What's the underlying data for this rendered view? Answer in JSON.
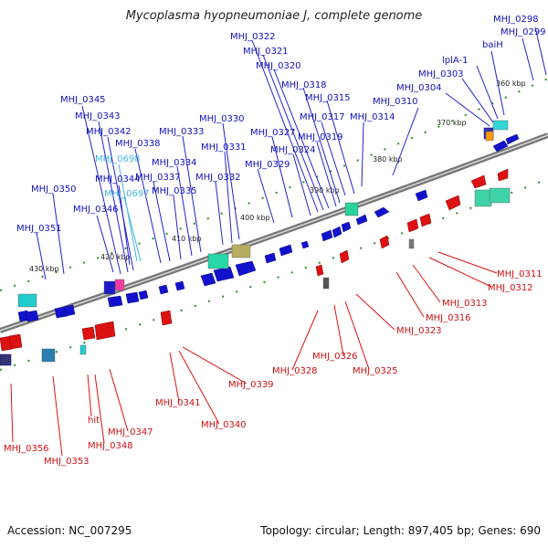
{
  "header": {
    "title": "Mycoplasma hyopneumoniae J, complete genome"
  },
  "footer": {
    "accession": "Accession: NC_007295",
    "summary": "Topology: circular; Length: 897,405 bp; Genes: 690"
  },
  "colors": {
    "plus_strand": "#1010cc",
    "minus_strand": "#dd1111",
    "backbone": "#888888",
    "tick": "#2a8a2a",
    "label_highlight": "#44b4dd"
  },
  "scale_ticks": [
    "360 kbp",
    "370 kbp",
    "380 kbp",
    "390 kbp",
    "400 kbp",
    "410 kbp",
    "420 kbp",
    "430 kbp"
  ],
  "plus_labels": [
    {
      "text": "MHJ_0298"
    },
    {
      "text": "MHJ_0299"
    },
    {
      "text": "baiH"
    },
    {
      "text": "lplA-1"
    },
    {
      "text": "MHJ_0303"
    },
    {
      "text": "MHJ_0304"
    },
    {
      "text": "MHJ_0310"
    },
    {
      "text": "MHJ_0314"
    },
    {
      "text": "MHJ_0315"
    },
    {
      "text": "MHJ_0317"
    },
    {
      "text": "MHJ_0318"
    },
    {
      "text": "MHJ_0319"
    },
    {
      "text": "MHJ_0320"
    },
    {
      "text": "MHJ_0321"
    },
    {
      "text": "MHJ_0322"
    },
    {
      "text": "MHJ_0324"
    },
    {
      "text": "MHJ_0327"
    },
    {
      "text": "MHJ_0329"
    },
    {
      "text": "MHJ_0330"
    },
    {
      "text": "MHJ_0331"
    },
    {
      "text": "MHJ_0332"
    },
    {
      "text": "MHJ_0333"
    },
    {
      "text": "MHJ_0334"
    },
    {
      "text": "MHJ_0335"
    },
    {
      "text": "MHJ_0337"
    },
    {
      "text": "MHJ_0338"
    },
    {
      "text": "MHJ_0342"
    },
    {
      "text": "MHJ_0343"
    },
    {
      "text": "MHJ_0345"
    },
    {
      "text": "MHJ_0698"
    },
    {
      "text": "MHJ_0344"
    },
    {
      "text": "MHJ_0697"
    },
    {
      "text": "MHJ_0346"
    },
    {
      "text": "MHJ_0350"
    },
    {
      "text": "MHJ_0351"
    }
  ],
  "minus_labels": [
    {
      "text": "MHJ_0311"
    },
    {
      "text": "MHJ_0312"
    },
    {
      "text": "MHJ_0313"
    },
    {
      "text": "MHJ_0316"
    },
    {
      "text": "MHJ_0323"
    },
    {
      "text": "MHJ_0325"
    },
    {
      "text": "MHJ_0326"
    },
    {
      "text": "MHJ_0328"
    },
    {
      "text": "MHJ_0339"
    },
    {
      "text": "MHJ_0340"
    },
    {
      "text": "MHJ_0341"
    },
    {
      "text": "MHJ_0347"
    },
    {
      "text": "hit"
    },
    {
      "text": "MHJ_0348"
    },
    {
      "text": "MHJ_0353"
    },
    {
      "text": "MHJ_0356"
    }
  ]
}
